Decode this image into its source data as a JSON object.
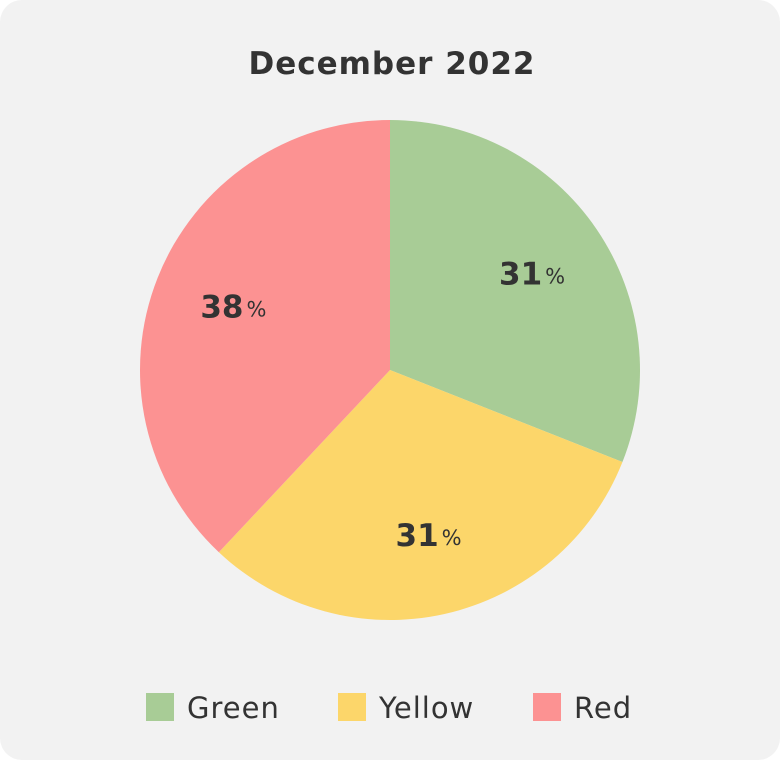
{
  "chart_data": {
    "type": "pie",
    "title": "December 2022",
    "categories": [
      "Green",
      "Yellow",
      "Red"
    ],
    "values": [
      31,
      31,
      38
    ],
    "value_unit": "%",
    "colors": [
      "#a8cc96",
      "#fcd66a",
      "#fc9292"
    ]
  }
}
